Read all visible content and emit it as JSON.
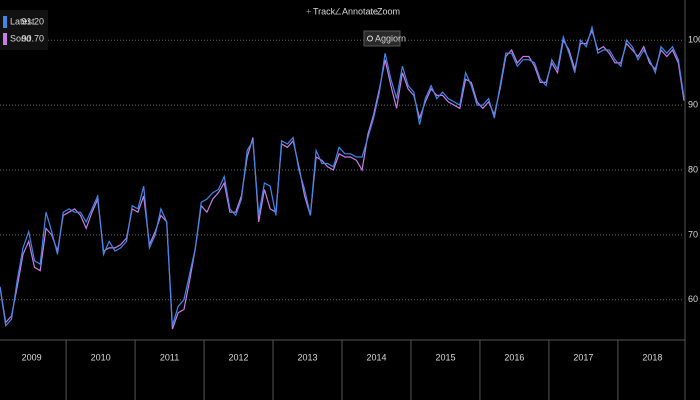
{
  "chart_data": {
    "type": "line",
    "toolbar": [
      "Track",
      "Annotate",
      "Zoom"
    ],
    "button": "Aggiorn",
    "categories": [
      null,
      null,
      null,
      null,
      null,
      null,
      "2009",
      null,
      null,
      null,
      null,
      null,
      null,
      null,
      null,
      null,
      null,
      null,
      "2010",
      null,
      null,
      null,
      null,
      null,
      null,
      null,
      null,
      null,
      null,
      null,
      "2011",
      null,
      null,
      null,
      null,
      null,
      null,
      null,
      null,
      null,
      null,
      null,
      "2012",
      null,
      null,
      null,
      null,
      null,
      null,
      null,
      null,
      null,
      null,
      null,
      "2013",
      null,
      null,
      null,
      null,
      null,
      null,
      null,
      null,
      null,
      null,
      null,
      "2014",
      null,
      null,
      null,
      null,
      null,
      null,
      null,
      null,
      null,
      null,
      null,
      "2015",
      null,
      null,
      null,
      null,
      null,
      null,
      null,
      null,
      null,
      null,
      null,
      "2016",
      null,
      null,
      null,
      null,
      null,
      null,
      null,
      null,
      null,
      null,
      null,
      "2017",
      null,
      null,
      null,
      null,
      null,
      null,
      null,
      null,
      null,
      null,
      null,
      "2018",
      null,
      null,
      null,
      null,
      null
    ],
    "series": [
      {
        "name": "Latest",
        "legend_label": "91.20",
        "color": "#3f86e8",
        "values": [
          62,
          56,
          57,
          63,
          68,
          70.5,
          66,
          65.5,
          73.5,
          70.5,
          67,
          73.5,
          74,
          73.5,
          73.5,
          72,
          74,
          76,
          67,
          69,
          67.5,
          68,
          69,
          74.5,
          74,
          77.5,
          68,
          70,
          74,
          72,
          56,
          59,
          60,
          64,
          68,
          75,
          75.5,
          76.5,
          77,
          79,
          74,
          73,
          75.5,
          83,
          84.5,
          73,
          78,
          77.5,
          73,
          84.5,
          84,
          85,
          80,
          77,
          73,
          83,
          81,
          81,
          80.5,
          83.5,
          82.5,
          82.5,
          82,
          82,
          85,
          88,
          92,
          98,
          94,
          91,
          96,
          93,
          92,
          87,
          91,
          93,
          91,
          92,
          91,
          90.5,
          90,
          95,
          93,
          90,
          90,
          91,
          88,
          93,
          98,
          98,
          96,
          97,
          97,
          96.5,
          94,
          93,
          97,
          95.5,
          100.5,
          98,
          95,
          100,
          99,
          102,
          98,
          98.5,
          98.5,
          97,
          96,
          100,
          99,
          97,
          98.5,
          97,
          95,
          99,
          98,
          99,
          97,
          91.2
        ]
      },
      {
        "name": "Sond",
        "legend_label": "90.70",
        "color": "#c97be8",
        "values": [
          62,
          56.5,
          57.5,
          62,
          67,
          69,
          65,
          64.5,
          71,
          70,
          67.5,
          73,
          73.5,
          74,
          73,
          71,
          73.5,
          75.5,
          67.5,
          68,
          68,
          68.5,
          69.5,
          74,
          73.5,
          76,
          68.5,
          70.5,
          73,
          72,
          55.5,
          58,
          58.5,
          63,
          68,
          74.5,
          73.5,
          75.5,
          76.5,
          78,
          73.5,
          73.5,
          76,
          82,
          85,
          72,
          77,
          74,
          73.5,
          84,
          83.5,
          84.5,
          80.5,
          76,
          73,
          82,
          81.5,
          80.5,
          80,
          82.5,
          82,
          82,
          81.5,
          80,
          85.5,
          88.5,
          92.5,
          97,
          93,
          89.5,
          95,
          92.5,
          91.5,
          88,
          90.5,
          92.5,
          91.5,
          91.5,
          90.5,
          90,
          89.5,
          94,
          93.5,
          90.5,
          89.5,
          90.5,
          88.5,
          92.5,
          97.5,
          98.5,
          96.5,
          97.5,
          97.5,
          96,
          93.5,
          93.5,
          96.5,
          95,
          100,
          98.5,
          95.5,
          99.5,
          99.5,
          101.5,
          98.5,
          99,
          98,
          96.5,
          96.5,
          99.5,
          98.5,
          97.5,
          99,
          96.5,
          95.5,
          98.5,
          97.5,
          98.5,
          96.5,
          90.7
        ]
      }
    ],
    "ylim": [
      53.8,
      106.2
    ],
    "yticks": [
      60,
      70,
      80,
      90,
      100
    ],
    "grid": true
  }
}
